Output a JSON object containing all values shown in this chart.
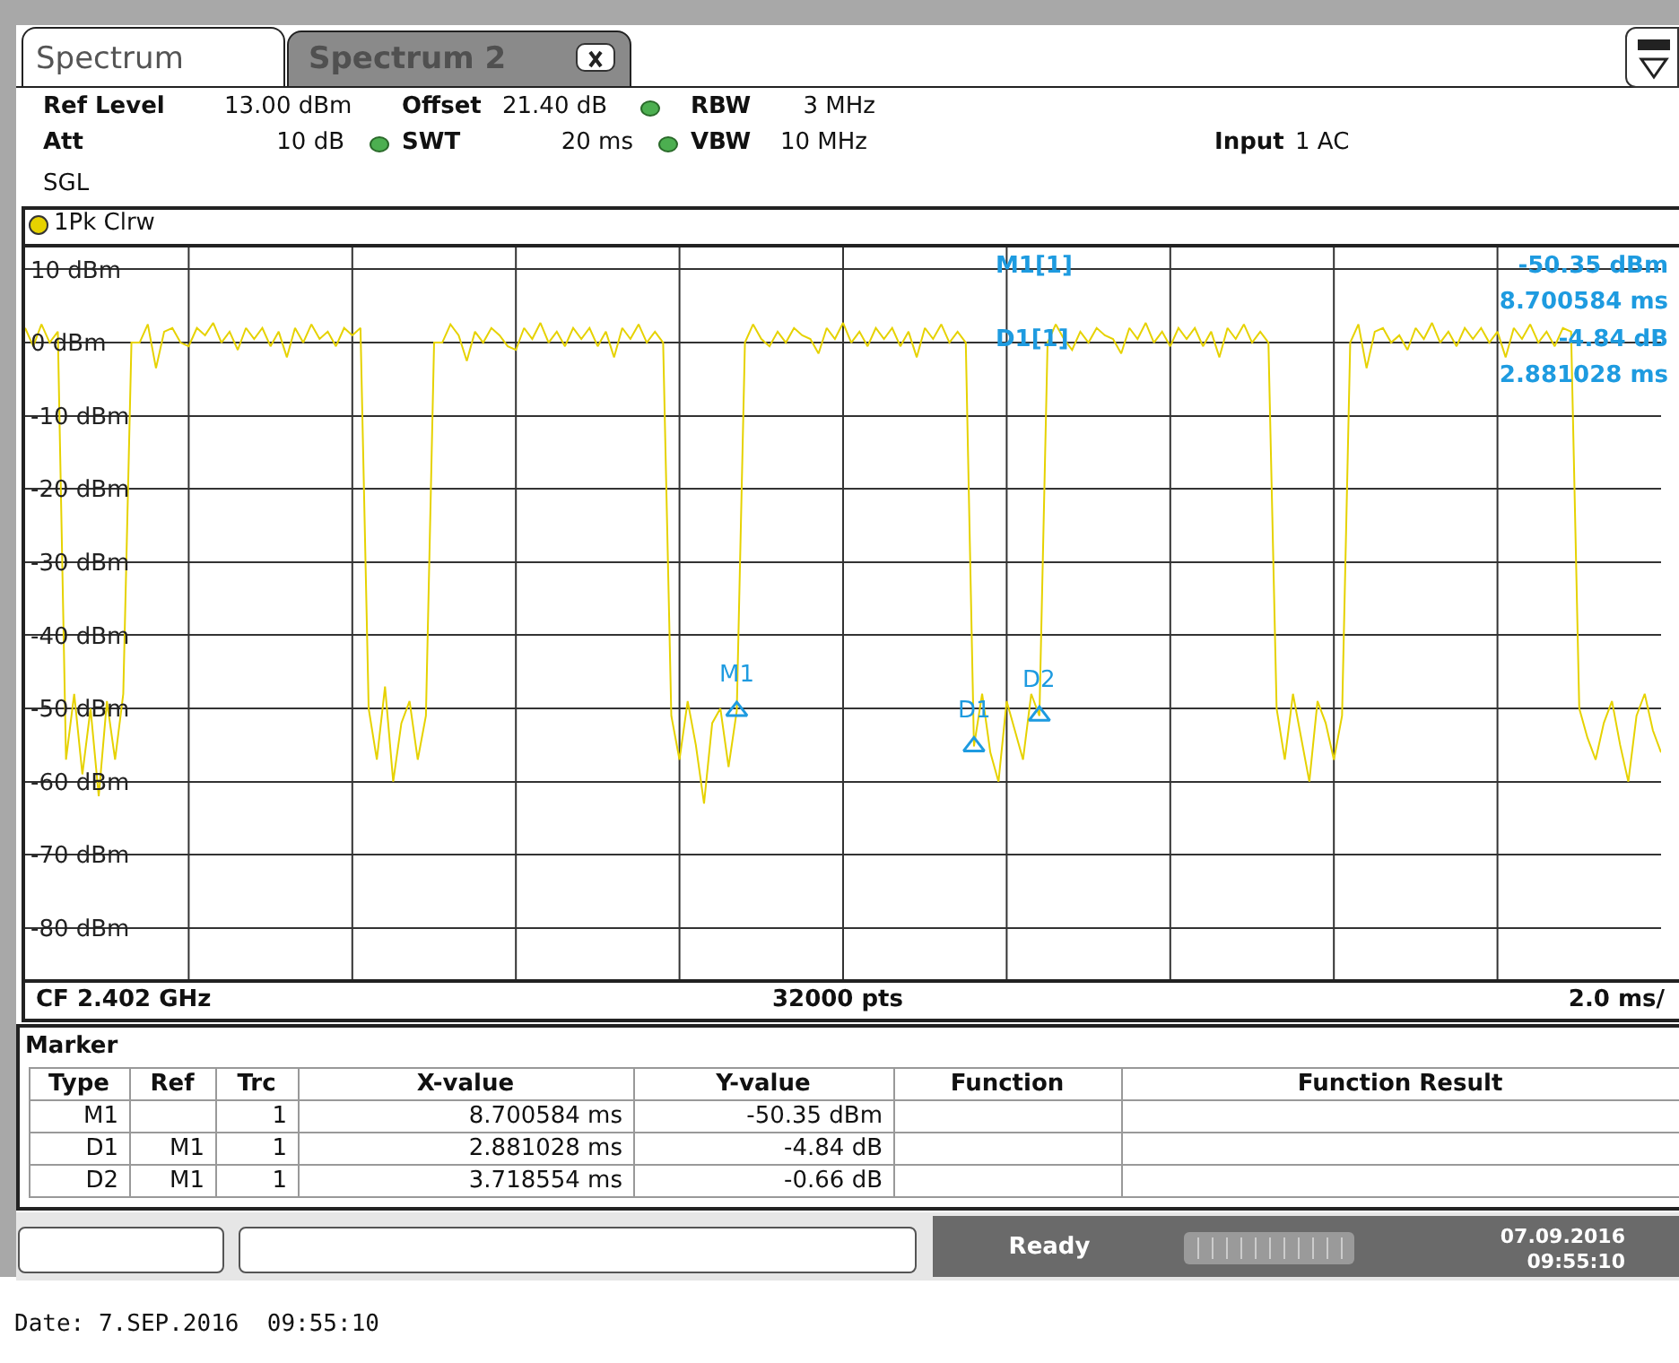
{
  "chart_data": {
    "type": "line",
    "title": "Spectrum",
    "annotations": [
      "Spectrum 2",
      "Ref Level",
      "13.00 dBm",
      "Offset",
      "21.40 dB",
      "RBW",
      "3 MHz",
      "Att",
      "10 dB",
      "SWT",
      "20 ms",
      "VBW",
      "10 MHz",
      "Input",
      "1 AC",
      "SGL",
      "1Pk Clrw",
      "M1[1]",
      "-50.35 dBm",
      "8.700584 ms",
      "D1[1]",
      "-4.84 dB",
      "2.881028 ms",
      "CF 2.402 GHz",
      "32000 pts",
      "2.0 ms/",
      "Marker",
      "Type",
      "Ref",
      "Trc",
      "X-value",
      "Y-value",
      "Function",
      "Function Result",
      "M1",
      "1",
      "8.700584 ms",
      "-50.35 dBm",
      "D1",
      "M1",
      "1",
      "2.881028 ms",
      "-4.84 dB",
      "D2",
      "M1",
      "1",
      "3.718554 ms",
      "-0.66 dB",
      "Ready",
      "07.09.2016",
      "09:55:10",
      "Date: 7.SEP.2016  09:55:10",
      "M1",
      "D1",
      "D2"
    ],
    "categories": [
      null,
      null,
      null,
      null,
      null,
      null,
      null,
      null,
      null,
      null,
      null,
      null,
      null,
      null,
      null,
      null,
      null,
      null,
      null,
      null,
      null,
      null,
      null,
      null,
      null,
      null,
      null,
      null,
      null,
      null,
      null,
      null,
      null,
      null,
      null,
      null,
      null,
      null,
      null,
      null,
      null,
      null,
      null,
      null,
      null,
      null,
      null,
      null,
      null,
      null,
      null,
      null,
      null,
      null,
      null,
      null,
      null,
      null,
      null,
      null,
      null,
      null,
      null,
      null,
      null,
      null,
      null,
      null,
      null,
      null,
      null,
      null,
      null,
      null,
      null,
      null,
      null,
      null,
      null,
      null,
      null,
      null,
      null,
      null,
      null,
      null,
      null,
      null,
      null,
      null,
      null,
      null,
      null,
      null,
      null,
      null,
      null,
      null,
      null,
      null,
      null,
      null,
      null,
      null,
      null,
      null,
      null,
      null,
      null,
      null,
      null,
      null,
      null,
      null,
      null,
      null,
      null,
      null,
      null,
      null,
      null,
      null,
      null,
      null,
      null,
      null,
      null,
      null,
      null,
      null,
      null,
      null,
      null,
      null,
      null,
      null,
      null,
      null,
      null,
      null,
      null,
      null,
      null,
      null,
      null,
      null,
      null,
      null,
      null,
      null,
      null,
      null,
      null,
      null,
      null,
      null,
      null,
      null,
      null,
      null,
      null,
      null,
      null,
      null,
      null,
      null,
      null,
      null,
      null,
      null,
      null,
      null,
      null,
      null,
      null,
      null,
      null,
      null,
      null,
      null,
      null,
      null,
      null,
      null,
      null,
      null,
      null,
      null,
      null,
      null,
      null,
      null,
      null,
      null,
      null,
      null,
      null,
      null,
      null,
      null,
      null
    ],
    "series": [
      {
        "color": "#e6d200",
        "values": [
          2,
          -0.5,
          2.5,
          0,
          1.5,
          -57,
          -48,
          -59,
          -50,
          -62,
          -49,
          -57,
          -48,
          0,
          0,
          2.5,
          -3.5,
          1.5,
          2,
          0,
          -0.5,
          2,
          1,
          2.7,
          0,
          1.5,
          -1,
          2,
          0.5,
          2,
          -0.5,
          1.5,
          -2,
          2,
          0,
          2.5,
          0.5,
          1.5,
          -0.5,
          2,
          1,
          2,
          -50,
          -57,
          -47,
          -60,
          -52,
          -49,
          -57,
          -51,
          0,
          0,
          2.5,
          1,
          -2.5,
          1.5,
          0,
          2,
          1,
          -0.5,
          -1,
          2,
          0.5,
          2.7,
          0,
          1.5,
          -0.5,
          2,
          0.5,
          2,
          -0.5,
          1.5,
          -2,
          2,
          0.5,
          2.5,
          0,
          1.5,
          0,
          -51,
          -57,
          -49,
          -55,
          -63,
          -52,
          -50,
          -58,
          -50.35,
          0,
          2.5,
          0.5,
          -0.5,
          1.5,
          0,
          2,
          1,
          0.5,
          -1.5,
          2,
          0.5,
          2.7,
          0,
          1.5,
          -0.5,
          2,
          0.5,
          2,
          -0.5,
          1.5,
          -2,
          2,
          0.5,
          2.5,
          0,
          1.5,
          0,
          -55.19,
          -48,
          -56,
          -60,
          -49,
          -53,
          -57,
          -48,
          -51.01,
          0,
          2.5,
          0.5,
          -1,
          1.5,
          0,
          2,
          1,
          0.5,
          -1.5,
          2,
          0.5,
          2.7,
          0,
          1.5,
          -0.5,
          2,
          0.5,
          2,
          -0.5,
          1.5,
          -2,
          2,
          0.5,
          2.5,
          0,
          1.5,
          0,
          -50,
          -57,
          -48,
          -54,
          -60,
          -49,
          -52,
          -57,
          -51,
          0,
          2.5,
          -3.5,
          1.5,
          2,
          0,
          1,
          -1,
          2,
          0.5,
          2.7,
          0,
          1.5,
          -0.5,
          2,
          0.5,
          2,
          0,
          1.5,
          -2,
          2,
          0.5,
          2.5,
          0,
          1.5,
          -0.5,
          2,
          1.5,
          -50,
          -54,
          -57,
          -52,
          -49,
          -55,
          -60,
          -51,
          -48,
          -53,
          -56
        ]
      },
      {
        "type": "scatter",
        "color": "#1e9be0",
        "marker": "triangle",
        "values": [
          null,
          null,
          null,
          null,
          null,
          null,
          null,
          null,
          null,
          null,
          null,
          null,
          null,
          null,
          null,
          null,
          null,
          null,
          null,
          null,
          null,
          null,
          null,
          null,
          null,
          null,
          null,
          null,
          null,
          null,
          null,
          null,
          null,
          null,
          null,
          null,
          null,
          null,
          null,
          null,
          null,
          null,
          null,
          null,
          null,
          null,
          null,
          null,
          null,
          null,
          null,
          null,
          null,
          null,
          null,
          null,
          null,
          null,
          null,
          null,
          null,
          null,
          null,
          null,
          null,
          null,
          null,
          null,
          null,
          null,
          null,
          null,
          null,
          null,
          null,
          null,
          null,
          null,
          null,
          null,
          null,
          null,
          null,
          null,
          null,
          null,
          null,
          -50.35,
          null,
          null,
          null,
          null,
          null,
          null,
          null,
          null,
          null,
          null,
          null,
          null,
          null,
          null,
          null,
          null,
          null,
          null,
          null,
          null,
          null,
          null,
          null,
          null,
          null,
          null,
          null,
          null,
          -55.19,
          null,
          null,
          null,
          null,
          null,
          null,
          null,
          -51.01,
          null,
          null,
          null,
          null,
          null,
          null,
          null,
          null,
          null,
          null,
          null,
          null,
          null,
          null,
          null,
          null,
          null,
          null,
          null,
          null,
          null,
          null,
          null,
          null,
          null,
          null,
          null,
          null,
          null,
          null,
          null,
          null,
          null,
          null,
          null,
          null,
          null,
          null,
          null,
          null,
          null,
          null,
          null,
          null,
          null,
          null,
          null,
          null,
          null,
          null,
          null,
          null,
          null,
          null,
          null,
          null,
          null,
          null,
          null,
          null,
          null,
          null,
          null,
          null,
          null,
          null,
          null,
          null,
          null,
          null,
          null,
          null,
          null,
          null,
          null,
          null
        ]
      }
    ],
    "ylim": [
      -87,
      13
    ],
    "yticks": [
      {
        "value": 10,
        "label": "10 dBm"
      },
      {
        "value": 0,
        "label": "0 dBm"
      },
      {
        "value": -10,
        "label": "-10 dBm"
      },
      {
        "value": -20,
        "label": "-20 dBm"
      },
      {
        "value": -30,
        "label": "-30 dBm"
      },
      {
        "value": -40,
        "label": "-40 dBm"
      },
      {
        "value": -50,
        "label": "-50 dBm"
      },
      {
        "value": -60,
        "label": "-60 dBm"
      },
      {
        "value": -70,
        "label": "-70 dBm"
      },
      {
        "value": -80,
        "label": "-80 dBm"
      }
    ],
    "tick_labels": "y",
    "grid": true,
    "marker": "none",
    "line_style": "solid"
  }
}
